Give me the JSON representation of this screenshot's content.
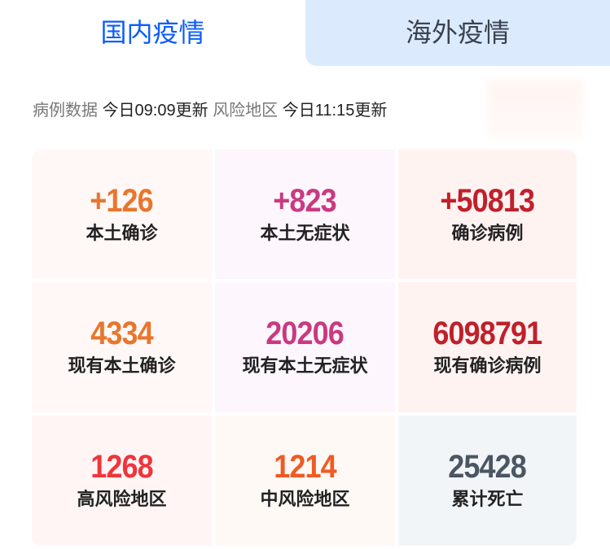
{
  "tabs": [
    {
      "label": "国内疫情",
      "active": true
    },
    {
      "label": "海外疫情",
      "active": false
    }
  ],
  "update": {
    "case_label": "病例数据",
    "case_time": "今日09:09更新",
    "risk_label": "风险地区",
    "risk_time": "今日11:15更新"
  },
  "stats": [
    {
      "value": "+126",
      "label": "本土确诊",
      "color": "#e8762e",
      "bg": "#fff8f6"
    },
    {
      "value": "+823",
      "label": "本土无症状",
      "color": "#c93a82",
      "bg": "#fdf6fd"
    },
    {
      "value": "+50813",
      "label": "确诊病例",
      "color": "#c0202a",
      "bg": "#fff3f2"
    },
    {
      "value": "4334",
      "label": "现有本土确诊",
      "color": "#e8762e",
      "bg": "#fff8f6"
    },
    {
      "value": "20206",
      "label": "现有本土无症状",
      "color": "#c93a82",
      "bg": "#fdf6fd"
    },
    {
      "value": "6098791",
      "label": "现有确诊病例",
      "color": "#c0202a",
      "bg": "#fff3f2"
    },
    {
      "value": "1268",
      "label": "高风险地区",
      "color": "#f0353b",
      "bg": "#fff5f5"
    },
    {
      "value": "1214",
      "label": "中风险地区",
      "color": "#f05a24",
      "bg": "#fff9f6"
    },
    {
      "value": "25428",
      "label": "累计死亡",
      "color": "#4b5663",
      "bg": "#f2f5f8"
    }
  ]
}
